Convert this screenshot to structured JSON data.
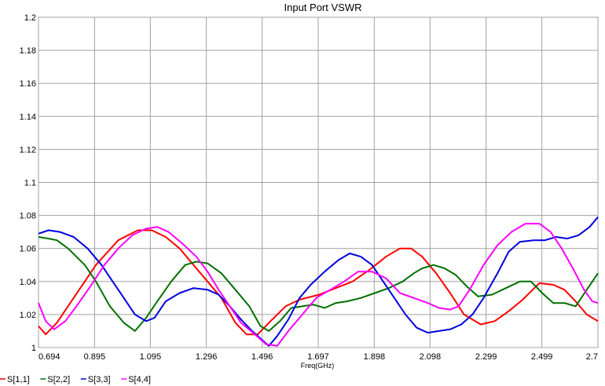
{
  "chart_data": {
    "type": "line",
    "title": "Input Port VSWR",
    "xlabel": "Freq(GHz)",
    "ylabel": "",
    "xlim": [
      0.694,
      2.7
    ],
    "ylim": [
      1.0,
      1.2
    ],
    "x_ticks": [
      "0.694",
      "0.895",
      "1.095",
      "1.296",
      "1.496",
      "1.697",
      "1.898",
      "2.098",
      "2.299",
      "2.499",
      "2.7"
    ],
    "y_ticks": [
      "1",
      "1.02",
      "1.04",
      "1.06",
      "1.08",
      "1.1",
      "1.12",
      "1.14",
      "1.16",
      "1.18",
      "1.2"
    ],
    "grid": true,
    "legend_position": "bottom-left",
    "series": [
      {
        "name": "S[1,1]",
        "color": "#ff0000",
        "points": [
          [
            0.694,
            1.013
          ],
          [
            0.72,
            1.008
          ],
          [
            0.76,
            1.015
          ],
          [
            0.82,
            1.03
          ],
          [
            0.9,
            1.05
          ],
          [
            0.98,
            1.065
          ],
          [
            1.05,
            1.071
          ],
          [
            1.1,
            1.071
          ],
          [
            1.15,
            1.067
          ],
          [
            1.2,
            1.06
          ],
          [
            1.25,
            1.05
          ],
          [
            1.3,
            1.04
          ],
          [
            1.35,
            1.03
          ],
          [
            1.4,
            1.015
          ],
          [
            1.44,
            1.008
          ],
          [
            1.48,
            1.008
          ],
          [
            1.52,
            1.015
          ],
          [
            1.58,
            1.025
          ],
          [
            1.63,
            1.029
          ],
          [
            1.7,
            1.032
          ],
          [
            1.76,
            1.036
          ],
          [
            1.82,
            1.04
          ],
          [
            1.88,
            1.047
          ],
          [
            1.94,
            1.055
          ],
          [
            1.99,
            1.06
          ],
          [
            2.03,
            1.06
          ],
          [
            2.07,
            1.055
          ],
          [
            2.12,
            1.045
          ],
          [
            2.17,
            1.033
          ],
          [
            2.22,
            1.02
          ],
          [
            2.28,
            1.014
          ],
          [
            2.33,
            1.016
          ],
          [
            2.38,
            1.022
          ],
          [
            2.43,
            1.029
          ],
          [
            2.46,
            1.034
          ],
          [
            2.49,
            1.039
          ],
          [
            2.54,
            1.038
          ],
          [
            2.58,
            1.035
          ],
          [
            2.62,
            1.028
          ],
          [
            2.66,
            1.02
          ],
          [
            2.7,
            1.016
          ]
        ]
      },
      {
        "name": "S[2,2]",
        "color": "#007000",
        "points": [
          [
            0.694,
            1.067
          ],
          [
            0.73,
            1.066
          ],
          [
            0.76,
            1.065
          ],
          [
            0.8,
            1.06
          ],
          [
            0.86,
            1.05
          ],
          [
            0.9,
            1.04
          ],
          [
            0.95,
            1.025
          ],
          [
            1.0,
            1.015
          ],
          [
            1.04,
            1.01
          ],
          [
            1.08,
            1.018
          ],
          [
            1.12,
            1.028
          ],
          [
            1.17,
            1.04
          ],
          [
            1.22,
            1.05
          ],
          [
            1.26,
            1.052
          ],
          [
            1.3,
            1.051
          ],
          [
            1.35,
            1.045
          ],
          [
            1.4,
            1.035
          ],
          [
            1.45,
            1.025
          ],
          [
            1.49,
            1.013
          ],
          [
            1.52,
            1.01
          ],
          [
            1.56,
            1.016
          ],
          [
            1.6,
            1.024
          ],
          [
            1.64,
            1.025
          ],
          [
            1.68,
            1.026
          ],
          [
            1.72,
            1.024
          ],
          [
            1.76,
            1.027
          ],
          [
            1.8,
            1.028
          ],
          [
            1.85,
            1.03
          ],
          [
            1.9,
            1.033
          ],
          [
            1.95,
            1.036
          ],
          [
            2.0,
            1.04
          ],
          [
            2.04,
            1.045
          ],
          [
            2.07,
            1.048
          ],
          [
            2.11,
            1.05
          ],
          [
            2.15,
            1.048
          ],
          [
            2.19,
            1.044
          ],
          [
            2.23,
            1.037
          ],
          [
            2.27,
            1.031
          ],
          [
            2.32,
            1.032
          ],
          [
            2.37,
            1.036
          ],
          [
            2.42,
            1.04
          ],
          [
            2.46,
            1.04
          ],
          [
            2.5,
            1.033
          ],
          [
            2.54,
            1.027
          ],
          [
            2.58,
            1.027
          ],
          [
            2.62,
            1.025
          ],
          [
            2.66,
            1.035
          ],
          [
            2.7,
            1.045
          ]
        ]
      },
      {
        "name": "S[3,3]",
        "color": "#0000e0",
        "points": [
          [
            0.694,
            1.069
          ],
          [
            0.73,
            1.071
          ],
          [
            0.77,
            1.07
          ],
          [
            0.82,
            1.067
          ],
          [
            0.87,
            1.06
          ],
          [
            0.92,
            1.05
          ],
          [
            0.96,
            1.04
          ],
          [
            1.0,
            1.03
          ],
          [
            1.04,
            1.02
          ],
          [
            1.08,
            1.016
          ],
          [
            1.11,
            1.018
          ],
          [
            1.15,
            1.028
          ],
          [
            1.2,
            1.033
          ],
          [
            1.25,
            1.036
          ],
          [
            1.3,
            1.035
          ],
          [
            1.34,
            1.032
          ],
          [
            1.38,
            1.025
          ],
          [
            1.42,
            1.017
          ],
          [
            1.46,
            1.01
          ],
          [
            1.5,
            1.004
          ],
          [
            1.52,
            1.001
          ],
          [
            1.55,
            1.007
          ],
          [
            1.59,
            1.017
          ],
          [
            1.63,
            1.03
          ],
          [
            1.67,
            1.038
          ],
          [
            1.72,
            1.046
          ],
          [
            1.77,
            1.053
          ],
          [
            1.81,
            1.057
          ],
          [
            1.85,
            1.055
          ],
          [
            1.89,
            1.05
          ],
          [
            1.93,
            1.04
          ],
          [
            1.97,
            1.03
          ],
          [
            2.01,
            1.02
          ],
          [
            2.05,
            1.012
          ],
          [
            2.09,
            1.009
          ],
          [
            2.13,
            1.01
          ],
          [
            2.17,
            1.011
          ],
          [
            2.21,
            1.014
          ],
          [
            2.25,
            1.02
          ],
          [
            2.29,
            1.03
          ],
          [
            2.34,
            1.045
          ],
          [
            2.38,
            1.058
          ],
          [
            2.42,
            1.064
          ],
          [
            2.47,
            1.065
          ],
          [
            2.51,
            1.065
          ],
          [
            2.55,
            1.067
          ],
          [
            2.59,
            1.066
          ],
          [
            2.63,
            1.068
          ],
          [
            2.67,
            1.073
          ],
          [
            2.7,
            1.079
          ]
        ]
      },
      {
        "name": "S[4,4]",
        "color": "#ff00ff",
        "points": [
          [
            0.694,
            1.027
          ],
          [
            0.72,
            1.016
          ],
          [
            0.75,
            1.011
          ],
          [
            0.79,
            1.016
          ],
          [
            0.83,
            1.025
          ],
          [
            0.88,
            1.037
          ],
          [
            0.93,
            1.05
          ],
          [
            0.98,
            1.06
          ],
          [
            1.03,
            1.068
          ],
          [
            1.08,
            1.072
          ],
          [
            1.12,
            1.073
          ],
          [
            1.16,
            1.07
          ],
          [
            1.21,
            1.063
          ],
          [
            1.26,
            1.055
          ],
          [
            1.3,
            1.046
          ],
          [
            1.34,
            1.035
          ],
          [
            1.38,
            1.025
          ],
          [
            1.42,
            1.015
          ],
          [
            1.47,
            1.008
          ],
          [
            1.51,
            1.002
          ],
          [
            1.55,
            1.001
          ],
          [
            1.59,
            1.01
          ],
          [
            1.64,
            1.02
          ],
          [
            1.69,
            1.03
          ],
          [
            1.74,
            1.035
          ],
          [
            1.79,
            1.04
          ],
          [
            1.84,
            1.046
          ],
          [
            1.89,
            1.046
          ],
          [
            1.94,
            1.042
          ],
          [
            1.99,
            1.033
          ],
          [
            2.04,
            1.03
          ],
          [
            2.09,
            1.027
          ],
          [
            2.13,
            1.024
          ],
          [
            2.17,
            1.023
          ],
          [
            2.2,
            1.025
          ],
          [
            2.24,
            1.035
          ],
          [
            2.29,
            1.05
          ],
          [
            2.34,
            1.062
          ],
          [
            2.39,
            1.07
          ],
          [
            2.44,
            1.075
          ],
          [
            2.49,
            1.075
          ],
          [
            2.53,
            1.07
          ],
          [
            2.57,
            1.06
          ],
          [
            2.61,
            1.048
          ],
          [
            2.65,
            1.035
          ],
          [
            2.68,
            1.028
          ],
          [
            2.7,
            1.027
          ]
        ]
      }
    ]
  }
}
